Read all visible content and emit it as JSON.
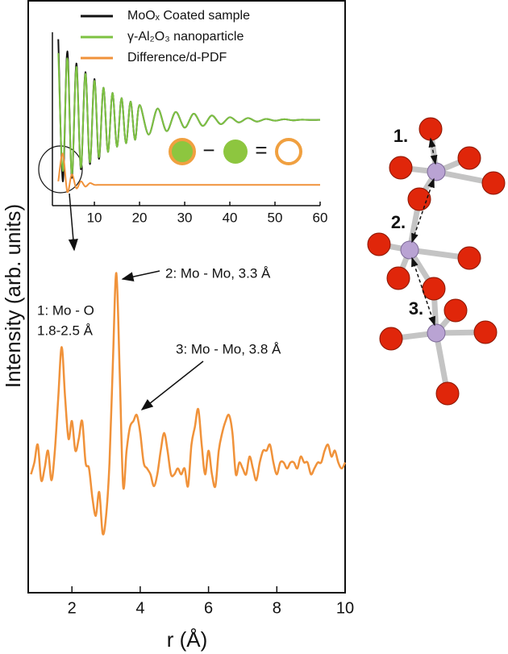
{
  "chart_data": [
    {
      "type": "line",
      "x_label": "r (Å)",
      "y_label": "Intensity (arb. units)",
      "color": "#f0923a",
      "xlim": [
        0.72,
        10
      ],
      "xticks": [
        2,
        4,
        6,
        8,
        10
      ],
      "ylim": [
        0,
        100
      ],
      "x": [
        0.8,
        0.9,
        1.0,
        1.1,
        1.2,
        1.3,
        1.4,
        1.5,
        1.6,
        1.7,
        1.8,
        1.9,
        2.0,
        2.1,
        2.2,
        2.3,
        2.4,
        2.5,
        2.6,
        2.7,
        2.8,
        2.9,
        3.0,
        3.1,
        3.2,
        3.3,
        3.4,
        3.5,
        3.6,
        3.7,
        3.8,
        3.9,
        4.0,
        4.1,
        4.2,
        4.3,
        4.4,
        4.5,
        4.6,
        4.7,
        4.8,
        4.9,
        5.0,
        5.1,
        5.2,
        5.3,
        5.4,
        5.5,
        5.6,
        5.7,
        5.8,
        5.9,
        6.0,
        6.1,
        6.2,
        6.3,
        6.4,
        6.5,
        6.6,
        6.7,
        6.8,
        6.9,
        7.0,
        7.1,
        7.2,
        7.3,
        7.4,
        7.5,
        7.6,
        7.7,
        7.8,
        7.9,
        8.0,
        8.1,
        8.2,
        8.3,
        8.4,
        8.5,
        8.6,
        8.7,
        8.8,
        8.9,
        9.0,
        9.1,
        9.2,
        9.3,
        9.4,
        9.5,
        9.6,
        9.7,
        9.8,
        9.9,
        10.0
      ],
      "values": [
        20,
        22,
        25,
        19,
        21,
        24,
        19,
        24,
        33,
        41.5,
        33,
        26,
        29,
        24,
        26,
        29,
        22,
        21,
        16,
        13,
        17,
        10,
        13,
        22,
        39,
        54,
        37,
        18,
        24,
        28,
        29,
        30,
        27,
        22,
        21,
        20,
        18,
        20,
        24,
        27,
        24,
        20,
        20,
        21,
        20,
        21,
        18,
        25,
        28,
        31,
        25,
        20,
        24,
        20,
        18,
        24,
        27,
        29,
        30,
        27,
        20,
        22,
        21,
        20,
        23,
        21,
        19,
        22,
        24,
        24,
        25,
        22,
        20,
        22,
        22,
        21,
        22,
        22,
        21,
        23,
        22,
        22,
        20,
        21,
        22,
        22,
        24,
        25,
        23,
        24,
        22,
        21,
        22
      ],
      "annotations": [
        "2: Mo - Mo, 3.3 Å",
        "1: Mo - O",
        "1.8-2.5 Å",
        "3: Mo - Mo, 3.8 Å"
      ]
    },
    {
      "type": "line",
      "xlim": [
        0.7,
        60
      ],
      "xticks": [
        10,
        20,
        30,
        40,
        50,
        60
      ],
      "ylim": [
        0,
        100
      ],
      "legend": "top",
      "symbols": [
        "−",
        "="
      ],
      "x": [
        2,
        3,
        4,
        5,
        6,
        7,
        8,
        9,
        10,
        11,
        12,
        13,
        14,
        15,
        16,
        17,
        18,
        19,
        20,
        22,
        24,
        26,
        28,
        30,
        32,
        34,
        36,
        38,
        40,
        42,
        44,
        46,
        48,
        50,
        52,
        54,
        56,
        58,
        60
      ],
      "series": [
        {
          "name": "MoOₓ Coated sample",
          "color": "#111111",
          "values": [
            96,
            14,
            89,
            16,
            82,
            21,
            77,
            24,
            73,
            27,
            68,
            31,
            65,
            34,
            62,
            36,
            60,
            38,
            58,
            41,
            56,
            43,
            54,
            45,
            53,
            46,
            52,
            47,
            51,
            48,
            50.5,
            48.5,
            50,
            49,
            49.8,
            49.2,
            49.6,
            49.4,
            49.5
          ]
        },
        {
          "name": "γ-Al₂O₃ nanoparticle",
          "color": "#7dc242",
          "values": [
            88,
            20,
            85,
            18,
            80,
            22,
            76,
            25,
            72,
            28,
            68,
            31,
            65,
            34,
            62,
            36,
            60,
            38,
            58,
            41,
            56,
            43,
            54,
            45,
            53,
            46,
            52,
            47,
            51,
            48,
            50.5,
            48.5,
            50,
            49,
            49.8,
            49.2,
            49.6,
            49.4,
            49.5
          ]
        },
        {
          "name": "Difference/d-PDF",
          "color": "#f0923a",
          "values": [
            14,
            30,
            8,
            18,
            10,
            14,
            11,
            13,
            12,
            12,
            12,
            12,
            12,
            12,
            12,
            12,
            12,
            12,
            12,
            12,
            12,
            12,
            12,
            12,
            12,
            12,
            12,
            12,
            12,
            12,
            12,
            12,
            12,
            12,
            12,
            12,
            12,
            12,
            12
          ]
        }
      ]
    }
  ],
  "structure": {
    "labels": [
      "1.",
      "2.",
      "3."
    ]
  }
}
